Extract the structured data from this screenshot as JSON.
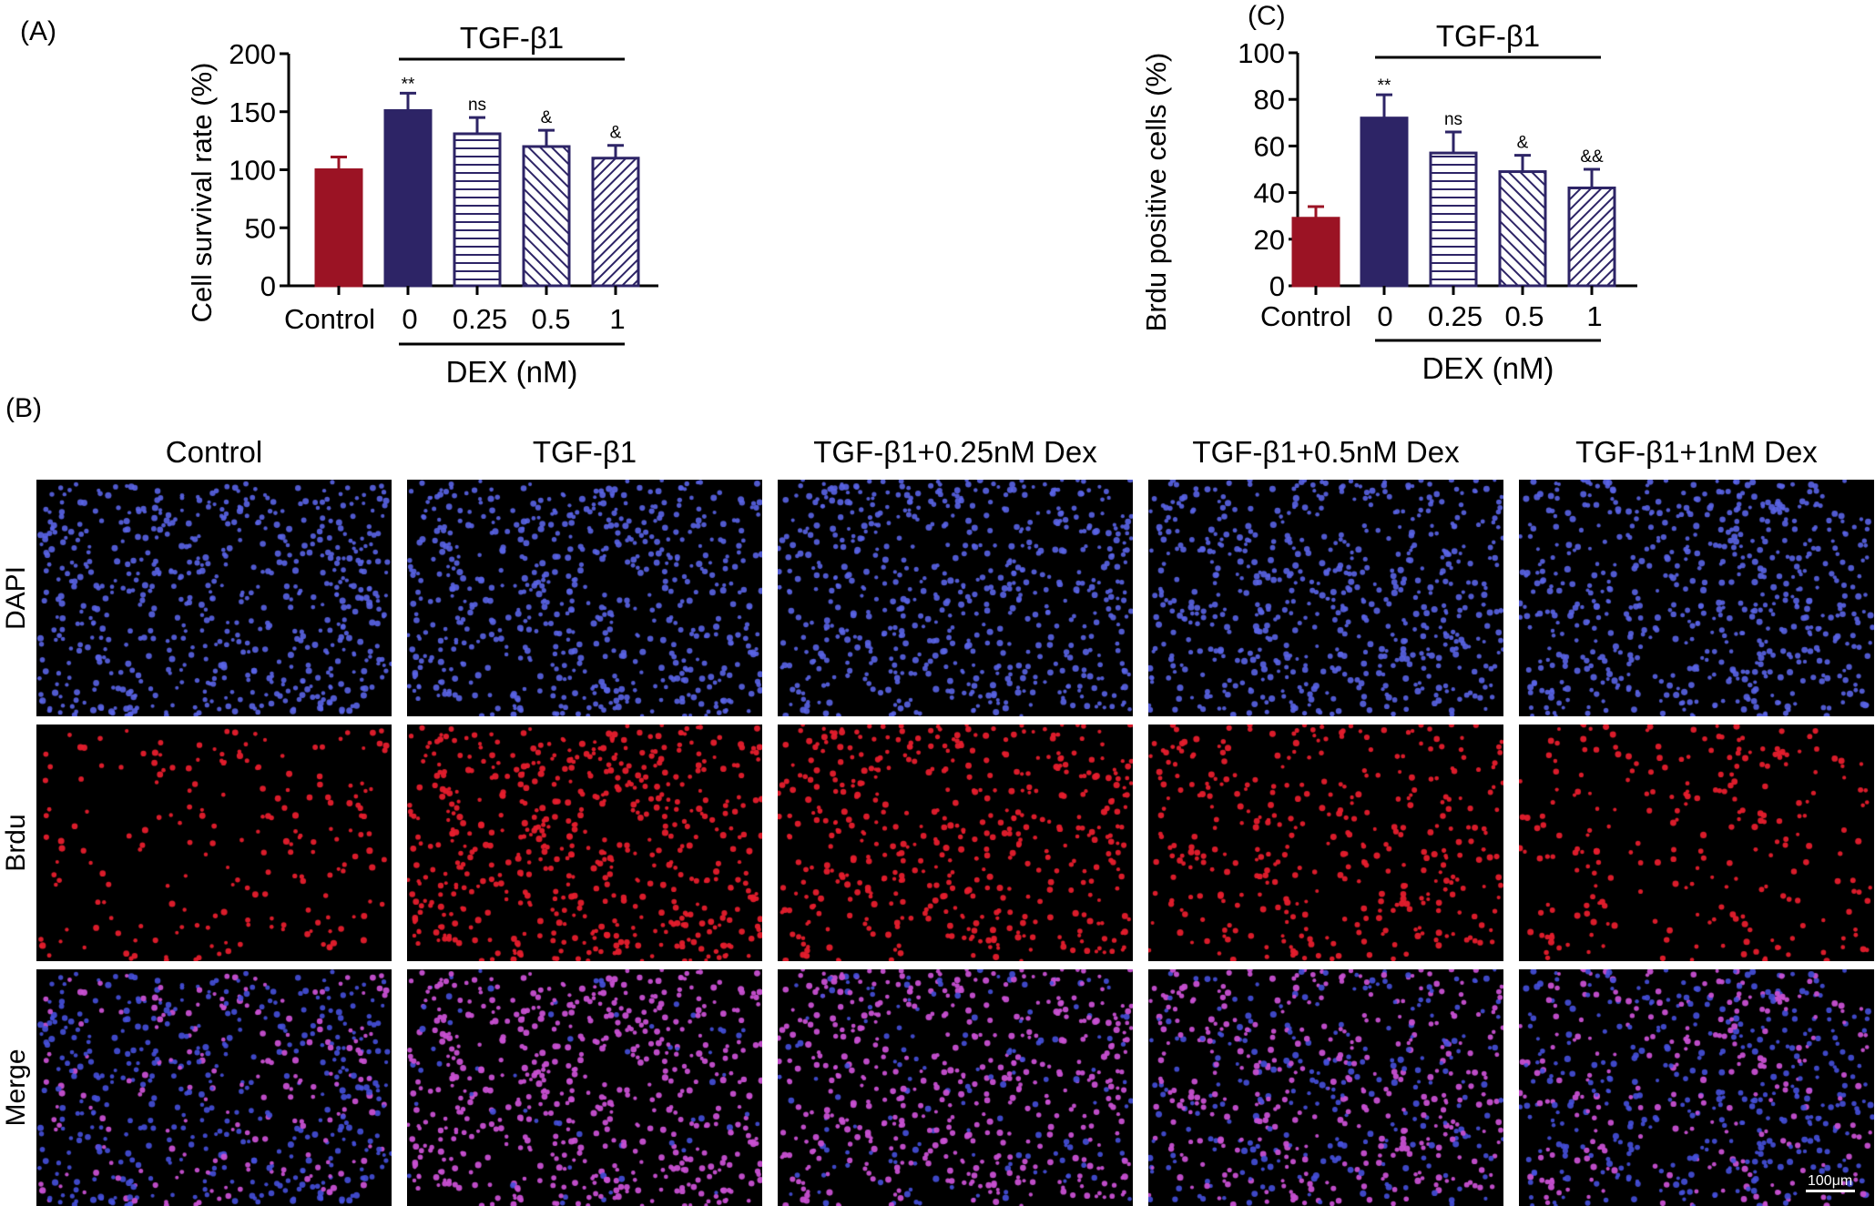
{
  "panels": {
    "A": "(A)",
    "B": "(B)",
    "C": "(C)"
  },
  "colors": {
    "control": "#9b1324",
    "tgf": "#2d2466",
    "dex_outline": "#2d2466"
  },
  "chart_data": [
    {
      "type": "bar",
      "panel": "(A)",
      "categories": [
        "Control",
        "0",
        "0.25",
        "0.5",
        "1"
      ],
      "values": [
        100,
        151,
        131,
        120,
        110
      ],
      "errors": [
        11,
        15,
        14,
        14,
        11
      ],
      "fills": [
        "solid-red",
        "solid-navy",
        "horizontal-lines",
        "diagonal-lines",
        "diagonal-lines-dense"
      ],
      "significance": [
        "",
        "**",
        "ns",
        "&",
        "&"
      ],
      "ylabel": "Cell survival rate (%)",
      "yticks": [
        "0",
        "50",
        "100",
        "150",
        "200"
      ],
      "ylim": [
        0,
        200
      ],
      "group_top_label": "TGF-β1",
      "group_bottom_label": "DEX (nM)"
    },
    {
      "type": "bar",
      "panel": "(C)",
      "categories": [
        "Control",
        "0",
        "0.25",
        "0.5",
        "1"
      ],
      "values": [
        29,
        72,
        57,
        49,
        42
      ],
      "errors": [
        5,
        10,
        9,
        7,
        8
      ],
      "fills": [
        "solid-red",
        "solid-navy",
        "horizontal-lines",
        "diagonal-lines",
        "diagonal-lines-dense"
      ],
      "significance": [
        "",
        "**",
        "ns",
        "&",
        "&&"
      ],
      "ylabel": "Brdu positive cells (%)",
      "yticks": [
        "0",
        "20",
        "40",
        "60",
        "80",
        "100"
      ],
      "ylim": [
        0,
        100
      ],
      "group_top_label": "TGF-β1",
      "group_bottom_label": "DEX (nM)"
    }
  ],
  "micrographs": {
    "columns": [
      "Control",
      "TGF-β1",
      "TGF-β1+0.25nM Dex",
      "TGF-β1+0.5nM Dex",
      "TGF-β1+1nM Dex"
    ],
    "rows": [
      "DAPI",
      "Brdu",
      "Merge"
    ],
    "brdu_density": [
      0.35,
      1.0,
      0.85,
      0.6,
      0.45
    ],
    "scale_bar": "100μm"
  }
}
